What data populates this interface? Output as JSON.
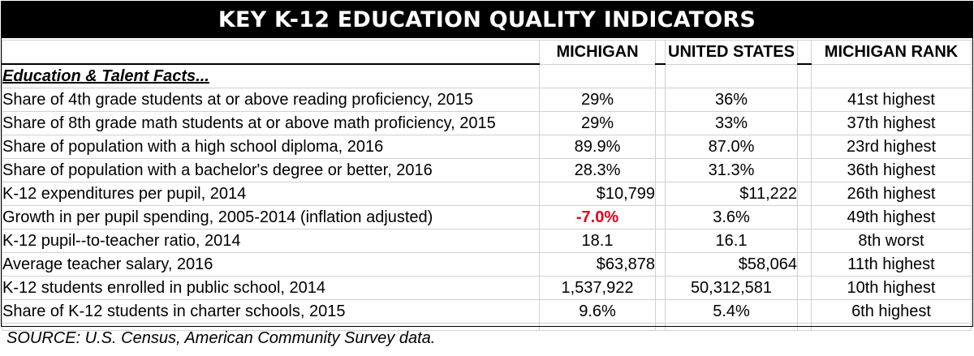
{
  "title": "KEY K-12 EDUCATION QUALITY INDICATORS",
  "columns": {
    "michigan": "MICHIGAN",
    "us": "UNITED STATES",
    "rank": "MICHIGAN RANK"
  },
  "section_label": "Education & Talent Facts...",
  "rows": [
    {
      "label": "Share of 4th grade students at or above reading proficiency, 2015",
      "michigan": "29%",
      "us": "36%",
      "rank": "41st highest"
    },
    {
      "label": "Share of 8th grade math students at or above math proficiency, 2015",
      "michigan": "29%",
      "us": "33%",
      "rank": "37th highest"
    },
    {
      "label": "Share of population with a high school diploma, 2016",
      "michigan": "89.9%",
      "us": "87.0%",
      "rank": "23rd highest"
    },
    {
      "label": "Share of population with a bachelor's degree or better, 2016",
      "michigan": "28.3%",
      "us": "31.3%",
      "rank": "36th highest"
    },
    {
      "label": "K-12 expenditures per pupil, 2014",
      "michigan": "$10,799",
      "us": "$11,222",
      "rank": "26th highest"
    },
    {
      "label": "Growth in per pupil spending, 2005-2014 (inflation adjusted)",
      "michigan": "-7.0%",
      "us": "3.6%",
      "rank": "49th highest"
    },
    {
      "label": "K-12 pupil--to-teacher ratio, 2014",
      "michigan": "18.1",
      "us": "16.1",
      "rank": "8th worst"
    },
    {
      "label": "Average teacher salary, 2016",
      "michigan": "$63,878",
      "us": "$58,064",
      "rank": "11th highest"
    },
    {
      "label": "K-12 students enrolled in public school, 2014",
      "michigan": "1,537,922",
      "us": "50,312,581",
      "rank": "10th highest"
    },
    {
      "label": "Share of K-12 students in charter schools, 2015",
      "michigan": "9.6%",
      "us": "5.4%",
      "rank": "6th highest"
    }
  ],
  "highlight_color": "#e3001b",
  "source": "SOURCE: U.S. Census, American Community Survey data."
}
